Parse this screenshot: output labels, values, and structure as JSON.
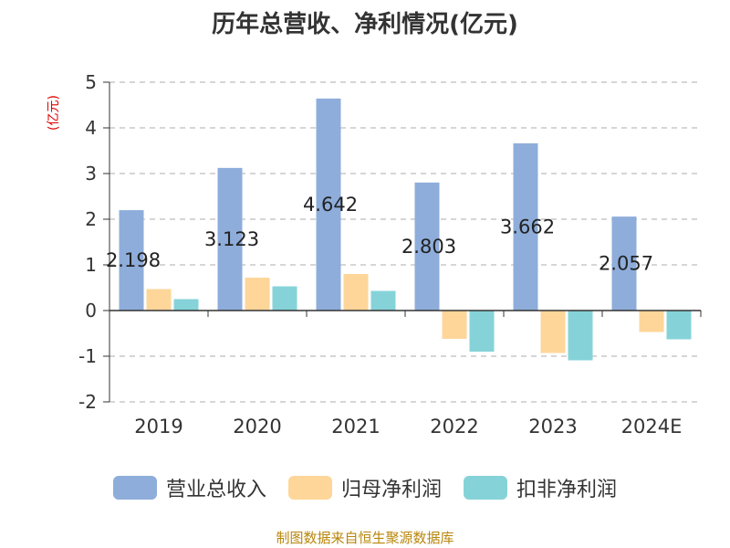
{
  "title": "历年总营收、净利情况(亿元)",
  "unit_label": "(亿元)",
  "source": "制图数据来自恒生聚源数据库",
  "chart_data": {
    "type": "bar",
    "categories": [
      "2019",
      "2020",
      "2021",
      "2022",
      "2023",
      "2024E"
    ],
    "series": [
      {
        "name": "营业总收入",
        "color": "#8eaddb",
        "values": [
          2.198,
          3.123,
          4.642,
          2.803,
          3.662,
          2.057
        ],
        "labels": [
          "2.198",
          "3.123",
          "4.642",
          "2.803",
          "3.662",
          "2.057"
        ]
      },
      {
        "name": "归母净利润",
        "color": "#fed69a",
        "values": [
          0.47,
          0.72,
          0.8,
          -0.62,
          -0.93,
          -0.47
        ]
      },
      {
        "name": "扣非净利润",
        "color": "#85d3d8",
        "values": [
          0.25,
          0.53,
          0.43,
          -0.9,
          -1.09,
          -0.63
        ]
      }
    ],
    "yticks": [
      "5",
      "4",
      "3",
      "2",
      "1",
      "0",
      "-1",
      "-2"
    ],
    "ylim": [
      -2,
      5
    ],
    "grid": "dashed horizontal",
    "legend_position": "bottom"
  }
}
